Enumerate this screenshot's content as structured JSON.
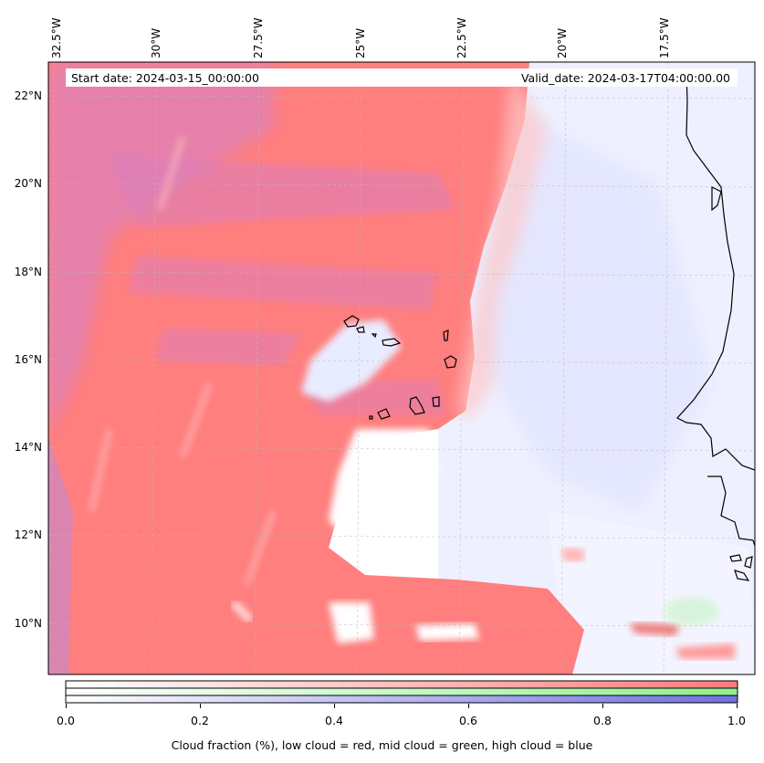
{
  "map": {
    "start_date": "Start date: 2024-03-15_00:00:00",
    "valid_date": "Valid_date: 2024-03-17T04:00:00.00",
    "lon_labels": [
      "32.5°W",
      "30°W",
      "27.5°W",
      "25°W",
      "22.5°W",
      "20°W",
      "17.5°W"
    ],
    "lat_labels": [
      "22°N",
      "20°N",
      "18°N",
      "16°N",
      "14°N",
      "12°N",
      "10°N"
    ]
  },
  "colorbar": {
    "ticks": [
      "0.0",
      "0.2",
      "0.4",
      "0.6",
      "0.8",
      "1.0"
    ],
    "label": "Cloud fraction (%), low cloud = red, mid cloud = green, high cloud = blue",
    "colors": {
      "low": "#ff7b7b",
      "mid": "#8ef08e",
      "high": "#7070e0"
    }
  }
}
